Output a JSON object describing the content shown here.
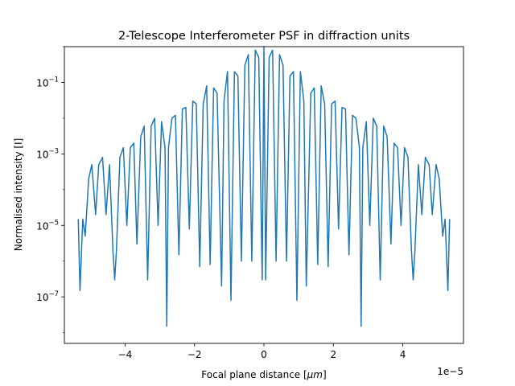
{
  "chart_data": {
    "type": "line",
    "title": "2-Telescope Interferometer PSF in diffraction units",
    "xlabel_prefix": "Focal plane distance [",
    "xlabel_unit": "μm",
    "xlabel_suffix": "]",
    "ylabel": "Normalised intensity [I]",
    "x_offset_label": "1e−5",
    "x_scale": "linear",
    "y_scale": "log",
    "xlim": [
      -5.75e-05,
      5.75e-05
    ],
    "ylim": [
      5e-09,
      1.0
    ],
    "x_ticks": [
      -4e-05,
      -2e-05,
      0,
      2e-05,
      4e-05
    ],
    "x_tick_labels": [
      "−4",
      "−2",
      "0",
      "2",
      "4"
    ],
    "y_ticks": [
      1e-07,
      1e-05,
      0.001,
      0.1
    ],
    "y_tick_labels": [
      {
        "base": "10",
        "exp": "−7"
      },
      {
        "base": "10",
        "exp": "−5"
      },
      {
        "base": "10",
        "exp": "−3"
      },
      {
        "base": "10",
        "exp": "−1"
      }
    ],
    "grid": false,
    "legend": "none",
    "series": [
      {
        "color": "#1f77b4",
        "x": [
          -5.35e-05,
          -5.3e-05,
          -5.22e-05,
          -5.15e-05,
          -5.05e-05,
          -4.96e-05,
          -4.85e-05,
          -4.76e-05,
          -4.65e-05,
          -4.55e-05,
          -4.45e-05,
          -4.35e-05,
          -4.3e-05,
          -4.25e-05,
          -4.15e-05,
          -4.05e-05,
          -3.95e-05,
          -3.85e-05,
          -3.75e-05,
          -3.66e-05,
          -3.55e-05,
          -3.45e-05,
          -3.35e-05,
          -3.25e-05,
          -3.15e-05,
          -3.05e-05,
          -2.95e-05,
          -2.85e-05,
          -2.8e-05,
          -2.75e-05,
          -2.65e-05,
          -2.55e-05,
          -2.45e-05,
          -2.35e-05,
          -2.25e-05,
          -2.15e-05,
          -2.05e-05,
          -1.95e-05,
          -1.85e-05,
          -1.75e-05,
          -1.65e-05,
          -1.55e-05,
          -1.45e-05,
          -1.35e-05,
          -1.22e-05,
          -1.15e-05,
          -1.05e-05,
          -9.5e-06,
          -8.5e-06,
          -7.5e-06,
          -6.5e-06,
          -5.5e-06,
          -4.5e-06,
          -3.5e-06,
          -2.5e-06,
          -1.5e-06,
          -5e-07,
          0,
          5e-07,
          1.5e-06,
          2.5e-06,
          3.5e-06,
          4.5e-06,
          5.5e-06,
          6.5e-06,
          7.5e-06,
          8.5e-06,
          9.5e-06,
          1.05e-05,
          1.15e-05,
          1.22e-05,
          1.35e-05,
          1.45e-05,
          1.55e-05,
          1.65e-05,
          1.75e-05,
          1.85e-05,
          1.95e-05,
          2.05e-05,
          2.15e-05,
          2.25e-05,
          2.35e-05,
          2.45e-05,
          2.55e-05,
          2.65e-05,
          2.75e-05,
          2.8e-05,
          2.85e-05,
          2.95e-05,
          3.05e-05,
          3.15e-05,
          3.25e-05,
          3.35e-05,
          3.45e-05,
          3.55e-05,
          3.66e-05,
          3.75e-05,
          3.85e-05,
          3.95e-05,
          4.05e-05,
          4.15e-05,
          4.25e-05,
          4.3e-05,
          4.35e-05,
          4.45e-05,
          4.55e-05,
          4.65e-05,
          4.76e-05,
          4.85e-05,
          4.96e-05,
          5.05e-05,
          5.15e-05,
          5.22e-05,
          5.3e-05,
          5.35e-05
        ],
        "y": [
          1.5e-05,
          1.5e-07,
          1.5e-05,
          5e-06,
          0.0002,
          0.0005,
          2e-05,
          0.0005,
          0.0008,
          2e-05,
          0.0005,
          2e-06,
          3e-07,
          2e-06,
          0.0008,
          0.0015,
          1e-05,
          0.0015,
          0.002,
          3e-06,
          0.003,
          0.006,
          3e-07,
          0.006,
          0.01,
          1e-05,
          0.008,
          0.0015,
          1.5e-08,
          0.0015,
          0.01,
          0.012,
          1.5e-06,
          0.018,
          0.02,
          8e-06,
          0.03,
          0.025,
          7e-07,
          0.025,
          0.08,
          8e-07,
          0.07,
          0.05,
          2e-07,
          0.03,
          0.2,
          8e-08,
          0.2,
          0.15,
          1e-06,
          0.3,
          0.6,
          1e-06,
          0.8,
          0.5,
          3e-07,
          1.0,
          3e-07,
          0.5,
          0.8,
          1e-06,
          0.6,
          0.3,
          1e-06,
          0.15,
          0.2,
          8e-08,
          0.2,
          0.03,
          2e-07,
          0.05,
          0.07,
          8e-07,
          0.08,
          0.025,
          7e-07,
          0.025,
          0.03,
          8e-06,
          0.02,
          0.018,
          1.5e-06,
          0.012,
          0.01,
          0.0015,
          1.5e-08,
          0.0015,
          0.008,
          1e-05,
          0.01,
          0.006,
          3e-07,
          0.006,
          0.003,
          3e-06,
          0.002,
          0.0015,
          1e-05,
          0.0015,
          0.0008,
          2e-06,
          3e-07,
          2e-06,
          0.0005,
          2e-05,
          0.0008,
          0.0005,
          2e-05,
          0.0005,
          0.0002,
          5e-06,
          1.5e-05,
          1.5e-07,
          1.5e-05
        ]
      }
    ]
  }
}
